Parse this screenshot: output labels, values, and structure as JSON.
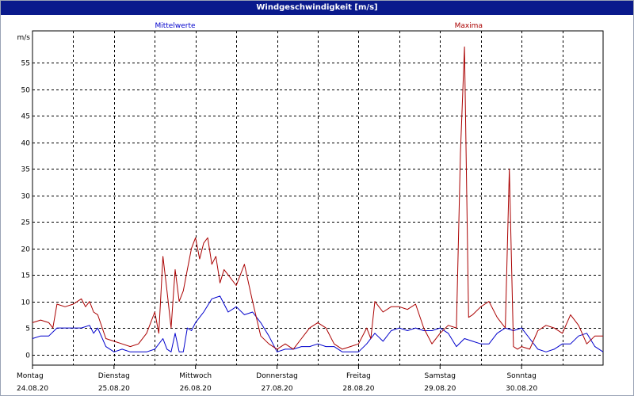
{
  "window": {
    "title": "Windgeschwindigkeit [m/s]"
  },
  "chart_data": {
    "type": "line",
    "title": "Windgeschwindigkeit [m/s]",
    "ylabel": "m/s",
    "xlabel": "",
    "ylim": [
      -2,
      61
    ],
    "xlim": [
      0,
      7
    ],
    "yticks": [
      0,
      5,
      10,
      15,
      20,
      25,
      30,
      35,
      40,
      45,
      50,
      55
    ],
    "grid": true,
    "legend": "top",
    "days": [
      {
        "day": "Montag",
        "date": "24.08.20"
      },
      {
        "day": "Dienstag",
        "date": "25.08.20"
      },
      {
        "day": "Mittwoch",
        "date": "26.08.20"
      },
      {
        "day": "Donnerstag",
        "date": "27.08.20"
      },
      {
        "day": "Freitag",
        "date": "28.08.20"
      },
      {
        "day": "Samstag",
        "date": "29.08.20"
      },
      {
        "day": "Sonntag",
        "date": "30.08.20"
      }
    ],
    "series": [
      {
        "name": "Mittelwerte",
        "color": "#0000cc",
        "x": [
          0,
          0.1,
          0.2,
          0.3,
          0.4,
          0.5,
          0.6,
          0.7,
          0.75,
          0.8,
          0.9,
          1.0,
          1.1,
          1.2,
          1.3,
          1.4,
          1.5,
          1.6,
          1.65,
          1.7,
          1.75,
          1.8,
          1.85,
          1.9,
          1.95,
          2.0,
          2.1,
          2.2,
          2.3,
          2.4,
          2.5,
          2.6,
          2.7,
          2.8,
          2.9,
          3.0,
          3.1,
          3.2,
          3.3,
          3.4,
          3.5,
          3.6,
          3.7,
          3.8,
          3.9,
          4.0,
          4.1,
          4.2,
          4.3,
          4.4,
          4.5,
          4.6,
          4.7,
          4.8,
          4.9,
          5.0,
          5.1,
          5.2,
          5.3,
          5.4,
          5.5,
          5.6,
          5.7,
          5.8,
          5.9,
          6.0,
          6.1,
          6.2,
          6.3,
          6.4,
          6.5,
          6.6,
          6.7,
          6.8,
          6.9,
          7.0
        ],
        "values": [
          3.0,
          3.5,
          3.5,
          5.0,
          5.0,
          5.0,
          5.0,
          5.5,
          4.0,
          5.0,
          1.5,
          0.5,
          1.0,
          0.5,
          0.5,
          0.5,
          1.0,
          3.0,
          1.0,
          0.5,
          4.0,
          0.5,
          0.5,
          5.0,
          4.5,
          6.0,
          8.0,
          10.5,
          11.0,
          8.0,
          9.0,
          7.5,
          8.0,
          6.0,
          3.5,
          0.5,
          1.0,
          1.0,
          1.5,
          1.5,
          2.0,
          1.5,
          1.5,
          0.5,
          0.5,
          0.5,
          2.0,
          4.0,
          2.5,
          4.5,
          5.0,
          4.5,
          5.0,
          4.5,
          4.5,
          5.0,
          4.0,
          1.5,
          3.0,
          2.5,
          2.0,
          2.0,
          4.0,
          5.0,
          4.5,
          5.0,
          3.0,
          1.0,
          0.5,
          1.0,
          2.0,
          2.0,
          3.5,
          4.0,
          1.5,
          0.5
        ]
      },
      {
        "name": "Maxima",
        "color": "#aa0000",
        "x": [
          0,
          0.1,
          0.2,
          0.25,
          0.3,
          0.4,
          0.5,
          0.6,
          0.65,
          0.7,
          0.75,
          0.8,
          0.9,
          1.0,
          1.1,
          1.2,
          1.3,
          1.4,
          1.5,
          1.55,
          1.6,
          1.65,
          1.7,
          1.75,
          1.8,
          1.85,
          1.9,
          1.95,
          2.0,
          2.05,
          2.1,
          2.15,
          2.2,
          2.25,
          2.3,
          2.35,
          2.4,
          2.5,
          2.6,
          2.7,
          2.8,
          2.9,
          3.0,
          3.1,
          3.2,
          3.3,
          3.4,
          3.5,
          3.6,
          3.7,
          3.8,
          3.9,
          4.0,
          4.1,
          4.15,
          4.2,
          4.3,
          4.4,
          4.5,
          4.6,
          4.7,
          4.8,
          4.9,
          5.0,
          5.1,
          5.2,
          5.25,
          5.3,
          5.35,
          5.4,
          5.5,
          5.6,
          5.7,
          5.8,
          5.85,
          5.9,
          5.95,
          6.0,
          6.1,
          6.2,
          6.3,
          6.4,
          6.5,
          6.6,
          6.7,
          6.8,
          6.9,
          7.0
        ],
        "values": [
          6.0,
          6.5,
          6.0,
          5.0,
          9.5,
          9.0,
          9.5,
          10.5,
          9.0,
          10.0,
          8.0,
          7.5,
          3.0,
          2.5,
          2.0,
          1.5,
          2.0,
          4.0,
          8.0,
          4.0,
          18.5,
          12.0,
          5.0,
          16.0,
          10.0,
          12.0,
          16.0,
          20.0,
          22.0,
          18.0,
          21.0,
          22.0,
          17.0,
          18.5,
          13.5,
          16.0,
          15.0,
          13.0,
          17.0,
          10.0,
          3.5,
          2.0,
          1.0,
          2.0,
          1.0,
          3.0,
          5.0,
          6.0,
          5.0,
          2.0,
          1.0,
          1.5,
          2.0,
          5.0,
          3.0,
          10.0,
          8.0,
          9.0,
          9.0,
          8.5,
          9.5,
          5.0,
          2.0,
          4.0,
          5.5,
          5.0,
          38.0,
          58.0,
          7.0,
          7.5,
          9.0,
          10.0,
          7.0,
          5.0,
          35.0,
          1.5,
          1.0,
          1.5,
          1.0,
          4.5,
          5.5,
          5.0,
          4.0,
          7.5,
          5.5,
          2.0,
          3.5,
          3.5
        ]
      }
    ]
  }
}
